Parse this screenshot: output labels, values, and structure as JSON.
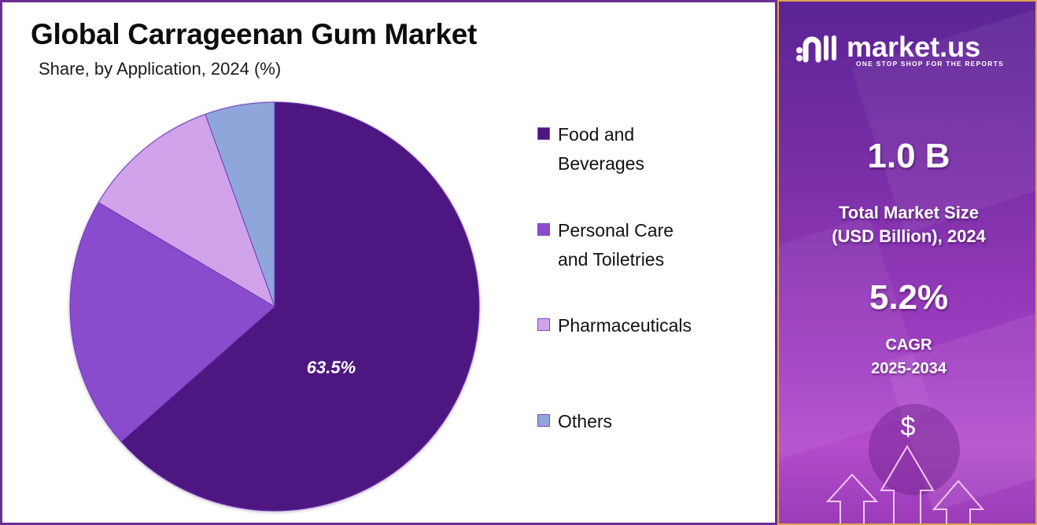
{
  "header": {
    "title": "Global Carrageenan Gum Market",
    "subtitle": "Share, by Application, 2024 (%)"
  },
  "chart_data": {
    "type": "pie",
    "title": "Global Carrageenan Gum Market",
    "subtitle": "Share, by Application, 2024 (%)",
    "categories": [
      "Food and Beverages",
      "Personal Care and Toiletries",
      "Pharmaceuticals",
      "Others"
    ],
    "values": [
      63.5,
      20.0,
      11.0,
      5.5
    ],
    "colors": [
      "#4e1680",
      "#8a4ccc",
      "#d1a3ea",
      "#8fa6db"
    ],
    "data_labels": [
      "63.5%",
      "",
      "",
      ""
    ],
    "start_angle": "12 o'clock, clockwise",
    "legend_position": "right"
  },
  "legend": {
    "items": [
      {
        "line1": "Food and",
        "line2": "Beverages",
        "color": "#4e1680"
      },
      {
        "line1": "Personal Care",
        "line2": "and Toiletries",
        "color": "#8a4ccc"
      },
      {
        "line1": "Pharmaceuticals",
        "line2": "",
        "color": "#d1a3ea"
      },
      {
        "line1": "Others",
        "line2": "",
        "color": "#8fa6db"
      }
    ]
  },
  "pie_label": "63.5%",
  "sidebar": {
    "brand": "market.us",
    "tagline": "ONE STOP SHOP FOR THE REPORTS",
    "market_size_value": "1.0 B",
    "market_size_label_line1": "Total Market Size",
    "market_size_label_line2": "(USD Billion), 2024",
    "cagr_value": "5.2%",
    "cagr_label_line1": "CAGR",
    "cagr_label_line2": "2025-2034",
    "dollar_symbol": "$"
  }
}
